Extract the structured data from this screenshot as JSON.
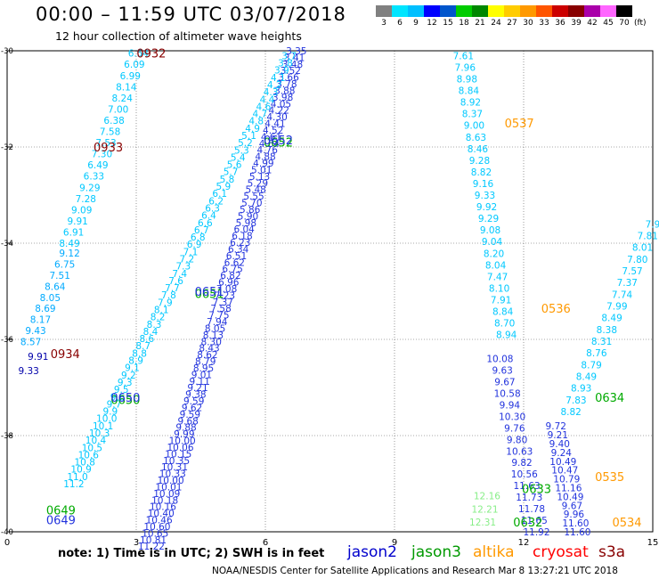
{
  "header": {
    "title": "00:00  –  11:59 UTC 03/07/2018",
    "subtitle": "12 hour collection of altimeter wave heights"
  },
  "color_scale": {
    "colors": [
      "#808080",
      "#00e5ff",
      "#00bfff",
      "#0000ff",
      "#0055cc",
      "#00cc00",
      "#008800",
      "#ffff00",
      "#ffcc00",
      "#ff9900",
      "#ff5500",
      "#cc0000",
      "#880000",
      "#aa00aa",
      "#ff66ff",
      "#000000"
    ],
    "labels": [
      "3",
      "6",
      "9",
      "12",
      "15",
      "18",
      "21",
      "24",
      "27",
      "30",
      "33",
      "36",
      "39",
      "42",
      "45",
      "70"
    ],
    "unit": "(ft)"
  },
  "legend": {
    "note": "note: 1) Time is in UTC; 2) SWH is in feet",
    "satellites": [
      {
        "name": "jason2",
        "color": "#0000cc"
      },
      {
        "name": "jason3",
        "color": "#009900"
      },
      {
        "name": "altika",
        "color": "#ff9900"
      },
      {
        "name": "cryosat",
        "color": "#ff0000"
      },
      {
        "name": "s3a",
        "color": "#880000"
      }
    ]
  },
  "credit": "NOAA/NESDIS Center for Satellite Applications and Research    Mar  8 13:27:21 UTC 2018",
  "chart_data": {
    "type": "scatter",
    "xlim": [
      0,
      15
    ],
    "ylim": [
      -40,
      -30
    ],
    "x_ticks": [
      "0",
      "3",
      "6",
      "9",
      "12",
      "15"
    ],
    "y_ticks": [
      "-30",
      "-32",
      "-34",
      "-36",
      "-38",
      "-40"
    ],
    "grid": true,
    "colors": {
      "c1": "#00c8ff",
      "c2": "#00aaff",
      "c3": "#2233dd",
      "c4": "#0000aa",
      "j3": "#00aa00",
      "s3a": "#880000",
      "alt": "#ff9900",
      "lg": "#88ee88"
    },
    "tracks": [
      {
        "color": "c1",
        "start": [
          3.05,
          -30.05
        ],
        "end": [
          1.45,
          -34.0
        ],
        "values": [
          "6.54",
          "6.09",
          "6.99",
          "8.14",
          "8.24",
          "7.00",
          "6.38",
          "7.58",
          "7.53",
          "7.30",
          "6.49",
          "6.33",
          "9.29",
          "7.28",
          "9.09",
          "9.91",
          "6.91",
          "8.49"
        ]
      },
      {
        "color": "c2",
        "start": [
          1.45,
          -34.2
        ],
        "end": [
          0.55,
          -36.05
        ],
        "values": [
          "9.12",
          "6.75",
          "7.51",
          "8.64",
          "8.05",
          "8.69",
          "8.17",
          "9.43",
          "8.57"
        ]
      },
      {
        "color": "c4",
        "start": [
          0.72,
          -36.35
        ],
        "end": [
          0.5,
          -36.65
        ],
        "values": [
          "9.91",
          "9.33"
        ]
      },
      {
        "color": "c3",
        "start": [
          3.35,
          -40.3
        ],
        "end": [
          6.72,
          -30.0
        ],
        "values": [
          "11.22",
          "10.81",
          "10.65",
          "10.60",
          "10.46",
          "10.40",
          "10.16",
          "10.18",
          "10.09",
          "10.01",
          "10.00",
          "10.33",
          "10.31",
          "10.35",
          "10.15",
          "10.06",
          "10.00",
          "9.99",
          "9.88",
          "9.68",
          "9.59",
          "9.62",
          "9.59",
          "9.38",
          "9.21",
          "9.11",
          "9.01",
          "8.95",
          "8.79",
          "8.62",
          "8.43",
          "8.30",
          "8.13",
          "8.05",
          "7.94",
          "7.75",
          "7.58",
          "7.37",
          "7.23",
          "7.08",
          "6.96",
          "6.82",
          "6.75",
          "6.62",
          "6.51",
          "6.34",
          "6.23",
          "6.18",
          "6.04",
          "5.98",
          "5.90",
          "5.86",
          "5.70",
          "5.55",
          "5.48",
          "5.29",
          "5.13",
          "5.01",
          "4.99",
          "4.88",
          "4.76",
          "4.64",
          "4.61",
          "4.52",
          "4.41",
          "4.30",
          "4.22",
          "4.05",
          "3.98",
          "3.88",
          "3.78",
          "3.66",
          "3.52",
          "3.48",
          "3.41",
          "3.35"
        ]
      },
      {
        "color": "c1",
        "start": [
          1.55,
          -39.0
        ],
        "end": [
          6.55,
          -30.1
        ],
        "values": [
          "11.2",
          "11.0",
          "10.9",
          "10.8",
          "10.6",
          "10.5",
          "10.4",
          "10.3",
          "10.1",
          "10.0",
          "9.9",
          "9.7",
          "9.6",
          "9.5",
          "9.3",
          "9.2",
          "9.1",
          "8.9",
          "8.8",
          "8.7",
          "8.6",
          "8.4",
          "8.3",
          "8.2",
          "8.1",
          "7.9",
          "7.8",
          "7.7",
          "7.6",
          "7.4",
          "7.3",
          "7.2",
          "7.1",
          "6.9",
          "6.8",
          "6.7",
          "6.6",
          "6.4",
          "6.3",
          "6.2",
          "6.1",
          "5.9",
          "5.8",
          "5.7",
          "5.6",
          "5.4",
          "5.3",
          "5.2",
          "5.1",
          "4.9",
          "4.8",
          "4.7",
          "4.6",
          "4.4",
          "4.3",
          "4.2",
          "4.1",
          "3.9",
          "3.8",
          "3.7"
        ]
      },
      {
        "color": "c1",
        "start": [
          10.6,
          -30.1
        ],
        "end": [
          11.6,
          -35.9
        ],
        "values": [
          "7.61",
          "7.96",
          "8.98",
          "8.84",
          "8.92",
          "8.37",
          "9.00",
          "8.63",
          "8.46",
          "9.28",
          "8.82",
          "9.16",
          "9.33",
          "9.92",
          "9.29",
          "9.08",
          "9.04",
          "8.20",
          "8.04",
          "7.47",
          "8.10",
          "7.91",
          "8.84",
          "8.70",
          "8.94"
        ]
      },
      {
        "color": "c3",
        "start": [
          11.45,
          -36.4
        ],
        "end": [
          12.3,
          -40.0
        ],
        "values": [
          "10.08",
          "9.63",
          "9.67",
          "10.58",
          "9.94",
          "10.30",
          "9.76",
          "9.80",
          "10.63",
          "9.82",
          "10.56",
          "11.63",
          "11.73",
          "11.78",
          "11.65",
          "11.92"
        ]
      },
      {
        "color": "lg",
        "start": [
          11.15,
          -39.25
        ],
        "end": [
          11.05,
          -39.8
        ],
        "values": [
          "12.16",
          "12.21",
          "12.31"
        ]
      },
      {
        "color": "c1",
        "start": [
          15.0,
          -33.6
        ],
        "end": [
          13.1,
          -37.5
        ],
        "values": [
          "7.9",
          "7.81",
          "8.01",
          "7.80",
          "7.57",
          "7.37",
          "7.74",
          "7.99",
          "8.49",
          "8.38",
          "8.31",
          "8.76",
          "8.79",
          "8.49",
          "8.93",
          "7.83",
          "8.82"
        ]
      },
      {
        "color": "c3",
        "start": [
          12.75,
          -37.8
        ],
        "end": [
          13.25,
          -40.0
        ],
        "values": [
          "9.72",
          "9.21",
          "9.40",
          "9.24",
          "10.49",
          "10.47",
          "10.79",
          "11.16",
          "10.49",
          "9.67",
          "9.96",
          "11.60",
          "11.60"
        ]
      }
    ],
    "annotations": [
      {
        "label": "0932",
        "x": 3.35,
        "y": -30.05,
        "color": "s3a"
      },
      {
        "label": "0933",
        "x": 2.35,
        "y": -32.0,
        "color": "s3a"
      },
      {
        "label": "0934",
        "x": 1.35,
        "y": -36.3,
        "color": "s3a"
      },
      {
        "label": "0652",
        "x": 6.3,
        "y": -31.9,
        "color": "j3"
      },
      {
        "label": "0652",
        "x": 6.3,
        "y": -31.85,
        "color": "c3"
      },
      {
        "label": "0651",
        "x": 4.7,
        "y": -35.05,
        "color": "j3"
      },
      {
        "label": "0651",
        "x": 4.7,
        "y": -35.0,
        "color": "c3"
      },
      {
        "label": "0650",
        "x": 2.75,
        "y": -37.25,
        "color": "j3"
      },
      {
        "label": "0650",
        "x": 2.75,
        "y": -37.2,
        "color": "c3"
      },
      {
        "label": "0649",
        "x": 1.25,
        "y": -39.55,
        "color": "j3"
      },
      {
        "label": "0649",
        "x": 1.25,
        "y": -39.75,
        "color": "c3"
      },
      {
        "label": "0537",
        "x": 11.9,
        "y": -31.5,
        "color": "alt"
      },
      {
        "label": "0536",
        "x": 12.75,
        "y": -35.35,
        "color": "alt"
      },
      {
        "label": "0634",
        "x": 14.0,
        "y": -37.2,
        "color": "j3"
      },
      {
        "label": "0633",
        "x": 12.3,
        "y": -39.1,
        "color": "j3"
      },
      {
        "label": "0632",
        "x": 12.1,
        "y": -39.8,
        "color": "j3"
      },
      {
        "label": "0535",
        "x": 14.0,
        "y": -38.85,
        "color": "alt"
      },
      {
        "label": "0534",
        "x": 14.4,
        "y": -39.8,
        "color": "alt"
      }
    ]
  }
}
